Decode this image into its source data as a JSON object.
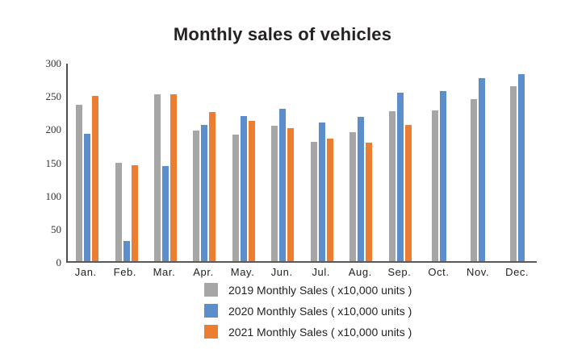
{
  "chart_data": {
    "type": "bar",
    "title": "Monthly sales of vehicles",
    "categories": [
      "Jan.",
      "Feb.",
      "Mar.",
      "Apr.",
      "May.",
      "Jun.",
      "Jul.",
      "Aug.",
      "Sep.",
      "Oct.",
      "Nov.",
      "Dec."
    ],
    "series": [
      {
        "name": "2019",
        "label": "2019 Monthly Sales ( x10,000 units )",
        "color": "#a6a6a6",
        "values": [
          238,
          149,
          253,
          198,
          192,
          206,
          181,
          196,
          228,
          229,
          246,
          266
        ]
      },
      {
        "name": "2020",
        "label": "2020 Monthly Sales ( x10,000 units )",
        "color": "#5b8ecb",
        "values": [
          193,
          31,
          144,
          207,
          220,
          231,
          211,
          219,
          256,
          258,
          278,
          284
        ]
      },
      {
        "name": "2021",
        "label": "2021 Monthly Sales ( x10,000 units )",
        "color": "#ed7d31",
        "values": [
          251,
          146,
          253,
          226,
          213,
          202,
          186,
          180,
          207,
          null,
          null,
          null
        ]
      }
    ],
    "xlabel": "",
    "ylabel": "",
    "ylim": [
      0,
      300
    ],
    "yticks": [
      0,
      50,
      100,
      150,
      200,
      250,
      300
    ],
    "grid": "off",
    "legend_position": "bottom",
    "axis_color": "#595959",
    "background_color": "#ffffff"
  }
}
